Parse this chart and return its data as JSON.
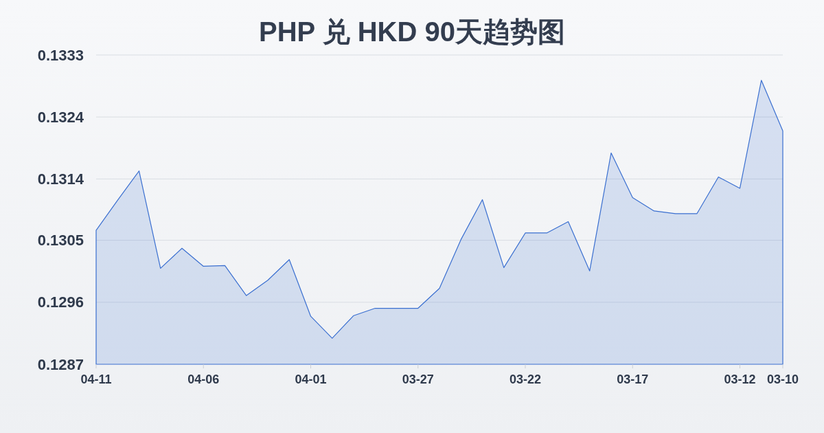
{
  "chart_data": {
    "type": "area",
    "title": "PHP 兑 HKD 90天趋势图",
    "categories": [
      "04-11",
      null,
      null,
      null,
      null,
      "04-06",
      null,
      null,
      null,
      null,
      "04-01",
      null,
      null,
      null,
      null,
      "03-27",
      null,
      null,
      null,
      null,
      "03-22",
      null,
      null,
      null,
      null,
      "03-17",
      null,
      null,
      null,
      null,
      "03-12",
      null,
      "03-10"
    ],
    "series": [
      {
        "color": "#3a6fd0",
        "values": [
          0.13067,
          0.13112,
          0.13156,
          0.1301,
          0.1304,
          0.13013,
          0.13014,
          0.12969,
          0.12992,
          0.13023,
          0.12938,
          0.12905,
          0.12939,
          0.1295,
          0.1295,
          0.1295,
          0.1298,
          0.13053,
          0.13113,
          0.13011,
          0.13063,
          0.13063,
          0.1308,
          0.13006,
          0.13183,
          0.13116,
          0.13096,
          0.13092,
          0.13092,
          0.13147,
          0.1313,
          0.13292,
          0.13216
        ]
      }
    ],
    "ylim": [
      0.12866,
      0.1333
    ],
    "yticks": [
      {
        "value": 0.12866,
        "label": "0.1287"
      },
      {
        "value": 0.12959,
        "label": "0.1296"
      },
      {
        "value": 0.13052,
        "label": "0.1305"
      },
      {
        "value": 0.13144,
        "label": "0.1314"
      },
      {
        "value": 0.13237,
        "label": "0.1324"
      },
      0.1333
    ],
    "grid": "y"
  }
}
